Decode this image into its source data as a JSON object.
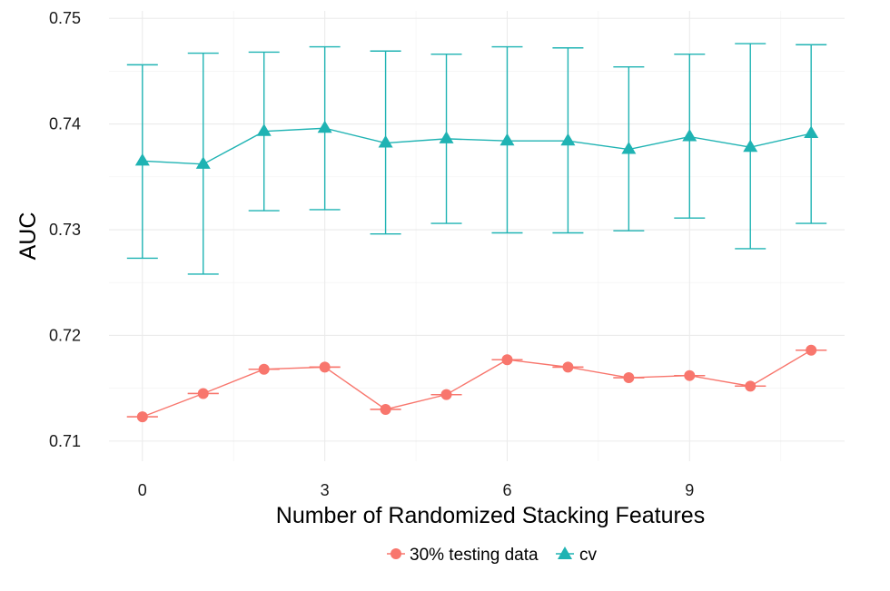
{
  "chart_data": {
    "type": "line",
    "title": "",
    "xlabel": "Number of Randomized Stacking Features",
    "ylabel": "AUC",
    "xlim": [
      -0.55,
      11.55
    ],
    "ylim": [
      0.7081,
      0.7507
    ],
    "x_ticks": [
      0,
      3,
      6,
      9
    ],
    "y_ticks": [
      0.71,
      0.72,
      0.73,
      0.74,
      0.75
    ],
    "y_tick_labels": [
      "0.71",
      "0.72",
      "0.73",
      "0.74",
      "0.75"
    ],
    "grid": true,
    "legend_position": "bottom",
    "x": [
      0,
      1,
      2,
      3,
      4,
      5,
      6,
      7,
      8,
      9,
      10,
      11
    ],
    "series": [
      {
        "name": "30% testing data",
        "color": "#F8766D",
        "marker": "circle",
        "values": [
          0.7123,
          0.7145,
          0.7168,
          0.717,
          0.713,
          0.7144,
          0.7177,
          0.717,
          0.716,
          0.7162,
          0.7152,
          0.7186
        ],
        "lower": [
          0.7123,
          0.7145,
          0.7168,
          0.717,
          0.713,
          0.7144,
          0.7177,
          0.717,
          0.716,
          0.7162,
          0.7152,
          0.7186
        ],
        "upper": [
          0.7123,
          0.7145,
          0.7168,
          0.717,
          0.713,
          0.7144,
          0.7177,
          0.717,
          0.716,
          0.7162,
          0.7152,
          0.7186
        ]
      },
      {
        "name": "cv",
        "color": "#1FB3B3",
        "marker": "triangle",
        "values": [
          0.7365,
          0.7362,
          0.7393,
          0.7396,
          0.7382,
          0.7386,
          0.7384,
          0.7384,
          0.7376,
          0.7388,
          0.7378,
          0.7391
        ],
        "lower": [
          0.7273,
          0.7258,
          0.7318,
          0.7319,
          0.7296,
          0.7306,
          0.7297,
          0.7297,
          0.7299,
          0.7311,
          0.7282,
          0.7306
        ],
        "upper": [
          0.7456,
          0.7467,
          0.7468,
          0.7473,
          0.7469,
          0.7466,
          0.7473,
          0.7472,
          0.7454,
          0.7466,
          0.7476,
          0.7475
        ]
      }
    ]
  }
}
